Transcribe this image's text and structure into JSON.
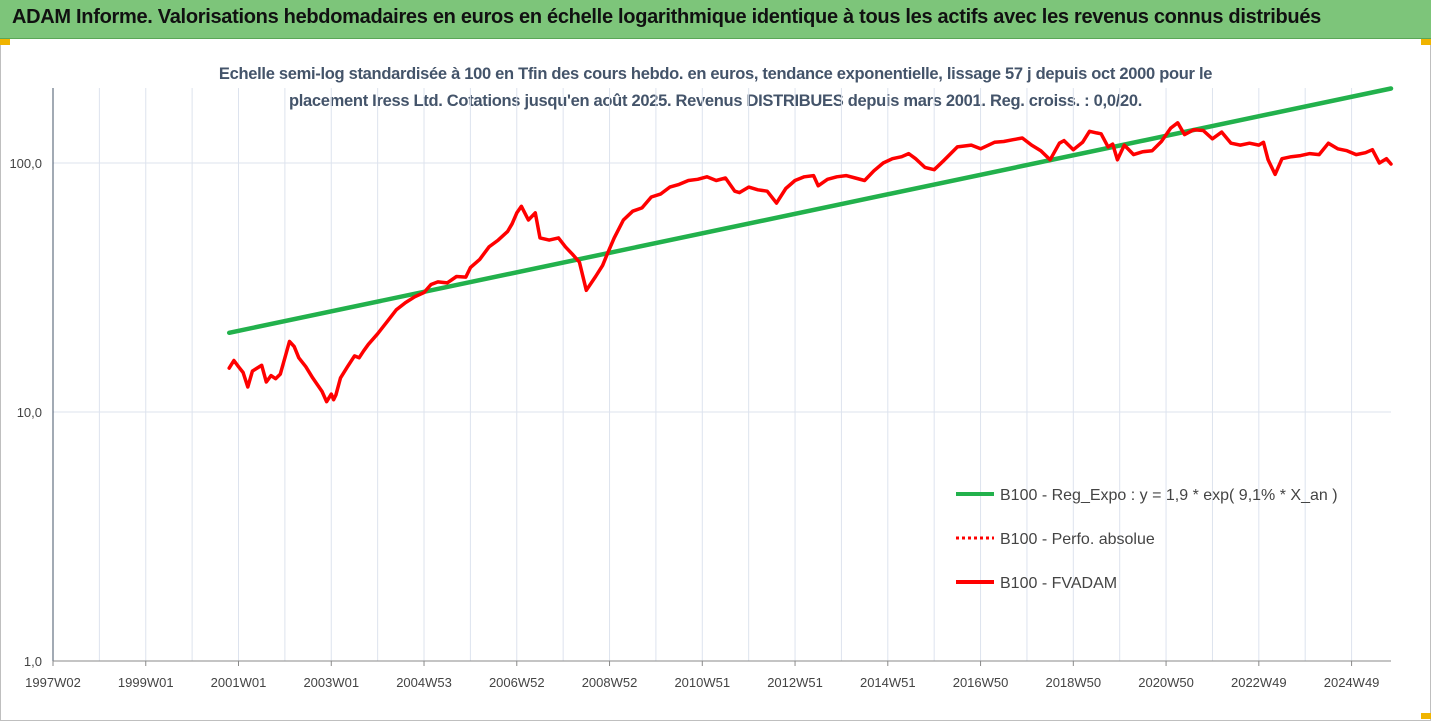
{
  "header": {
    "title": "ADAM Informe. Valorisations hebdomadaires en euros en échelle logarithmique identique à tous les actifs avec les revenus connus distribués",
    "background_color": "#7dc57a"
  },
  "chart_data": {
    "type": "line",
    "title_line1": "Echelle semi-log standardisée à 100 en Tfin des cours hebdo. en euros, tendance exponentielle, lissage 57 j depuis oct 2000 pour le",
    "title_line2": "placement Iress Ltd. Cotations jusqu'en août 2025. Revenus DISTRIBUES depuis mars 2001. Reg. croiss. : 0,0/20.",
    "y_scale": "log",
    "ylim": [
      1,
      200
    ],
    "y_ticks": [
      {
        "value": 1,
        "label": "1,0"
      },
      {
        "value": 10,
        "label": "10,0"
      },
      {
        "value": 100,
        "label": "100,0"
      }
    ],
    "xlim": [
      1997.0,
      2025.85
    ],
    "x_ticks": [
      {
        "value": 1997.0,
        "label": "1997W02"
      },
      {
        "value": 1999.0,
        "label": "1999W01"
      },
      {
        "value": 2001.0,
        "label": "2001W01"
      },
      {
        "value": 2003.0,
        "label": "2003W01"
      },
      {
        "value": 2005.0,
        "label": "2004W53"
      },
      {
        "value": 2007.0,
        "label": "2006W52"
      },
      {
        "value": 2009.0,
        "label": "2008W52"
      },
      {
        "value": 2011.0,
        "label": "2010W51"
      },
      {
        "value": 2013.0,
        "label": "2012W51"
      },
      {
        "value": 2015.0,
        "label": "2014W51"
      },
      {
        "value": 2017.0,
        "label": "2016W50"
      },
      {
        "value": 2019.0,
        "label": "2018W50"
      },
      {
        "value": 2021.0,
        "label": "2020W50"
      },
      {
        "value": 2023.0,
        "label": "2022W49"
      },
      {
        "value": 2025.0,
        "label": "2024W49"
      }
    ],
    "grid": "vertical",
    "legend_position": "right",
    "series": [
      {
        "name": "B100 - Reg_Expo : y = 1,9 * exp( 9,1% *  X_an )",
        "color": "#22b14c",
        "style": "solid",
        "x": [
          2000.8,
          2025.85
        ],
        "y": [
          20.8,
          199
        ]
      },
      {
        "name": "B100 - Perfo. absolue",
        "color": "#ff0000",
        "style": "dotted",
        "x": [],
        "y": []
      },
      {
        "name": "B100 - FVADAM",
        "color": "#ff0000",
        "style": "solid",
        "x": [
          2000.8,
          2000.9,
          2001.0,
          2001.1,
          2001.2,
          2001.3,
          2001.4,
          2001.5,
          2001.6,
          2001.7,
          2001.8,
          2001.9,
          2002.0,
          2002.1,
          2002.2,
          2002.3,
          2002.45,
          2002.6,
          2002.8,
          2002.9,
          2003.0,
          2003.05,
          2003.1,
          2003.2,
          2003.35,
          2003.5,
          2003.6,
          2003.7,
          2003.8,
          2004.0,
          2004.2,
          2004.4,
          2004.6,
          2004.8,
          2005.0,
          2005.15,
          2005.3,
          2005.5,
          2005.7,
          2005.9,
          2006.0,
          2006.2,
          2006.4,
          2006.6,
          2006.8,
          2006.9,
          2007.0,
          2007.1,
          2007.25,
          2007.4,
          2007.5,
          2007.7,
          2007.9,
          2008.05,
          2008.2,
          2008.35,
          2008.5,
          2008.7,
          2008.85,
          2008.95,
          2009.1,
          2009.3,
          2009.5,
          2009.7,
          2009.9,
          2010.1,
          2010.3,
          2010.5,
          2010.7,
          2010.9,
          2011.1,
          2011.3,
          2011.5,
          2011.7,
          2011.8,
          2012.0,
          2012.2,
          2012.4,
          2012.6,
          2012.8,
          2013.0,
          2013.2,
          2013.4,
          2013.5,
          2013.7,
          2013.9,
          2014.1,
          2014.3,
          2014.5,
          2014.7,
          2014.9,
          2015.1,
          2015.3,
          2015.45,
          2015.6,
          2015.8,
          2016.0,
          2016.2,
          2016.5,
          2016.8,
          2017.0,
          2017.3,
          2017.5,
          2017.7,
          2017.9,
          2018.1,
          2018.3,
          2018.5,
          2018.7,
          2018.8,
          2019.0,
          2019.2,
          2019.35,
          2019.5,
          2019.6,
          2019.75,
          2019.85,
          2019.95,
          2020.1,
          2020.3,
          2020.5,
          2020.7,
          2020.9,
          2021.1,
          2021.25,
          2021.4,
          2021.6,
          2021.8,
          2022.0,
          2022.2,
          2022.4,
          2022.6,
          2022.8,
          2023.0,
          2023.1,
          2023.2,
          2023.35,
          2023.5,
          2023.7,
          2023.9,
          2024.1,
          2024.3,
          2024.5,
          2024.7,
          2024.9,
          2025.1,
          2025.3,
          2025.45,
          2025.6,
          2025.75,
          2025.85
        ],
        "y": [
          15.0,
          16.1,
          15.2,
          14.4,
          12.6,
          14.6,
          15.0,
          15.4,
          13.2,
          14.0,
          13.6,
          14.2,
          16.5,
          19.2,
          18.3,
          16.5,
          15.2,
          13.7,
          12.1,
          11.0,
          11.8,
          11.2,
          11.7,
          13.7,
          15.2,
          16.8,
          16.5,
          17.6,
          18.7,
          20.6,
          23.0,
          25.7,
          27.5,
          29.0,
          30.2,
          32.5,
          33.3,
          33.0,
          35.0,
          34.8,
          38.0,
          41.0,
          46.0,
          49.0,
          53.0,
          57.0,
          63.0,
          67.0,
          59.0,
          63.0,
          50.0,
          49.0,
          50.0,
          46.0,
          43.0,
          40.0,
          30.8,
          35.0,
          38.8,
          43.0,
          50.0,
          59.0,
          64.0,
          66.0,
          73.0,
          75.0,
          80.0,
          82.0,
          85.0,
          86.0,
          88.0,
          85.0,
          87.0,
          77.0,
          76.0,
          80.0,
          78.0,
          77.0,
          69.0,
          79.0,
          85.0,
          88.0,
          89.0,
          81.0,
          86.0,
          88.0,
          89.0,
          87.0,
          85.0,
          93.0,
          100.0,
          104.0,
          106.0,
          109.0,
          104.0,
          96.0,
          94.0,
          102.0,
          116.0,
          118.0,
          114.0,
          121.0,
          122.0,
          124.0,
          126.0,
          118.0,
          112.0,
          103.0,
          120.0,
          123.0,
          113.0,
          121.0,
          134.0,
          132.0,
          131.0,
          116.0,
          119.0,
          103.0,
          118.0,
          108.0,
          111.0,
          112.0,
          122.0,
          138.0,
          145.0,
          130.0,
          136.0,
          135.0,
          125.0,
          133.0,
          120.0,
          118.0,
          120.0,
          118.0,
          121.0,
          103.0,
          90.0,
          104.0,
          106.0,
          107.0,
          109.0,
          108.0,
          120.0,
          114.0,
          112.0,
          108.0,
          110.0,
          113.0,
          100.0,
          104.0,
          99.0
        ]
      }
    ]
  }
}
